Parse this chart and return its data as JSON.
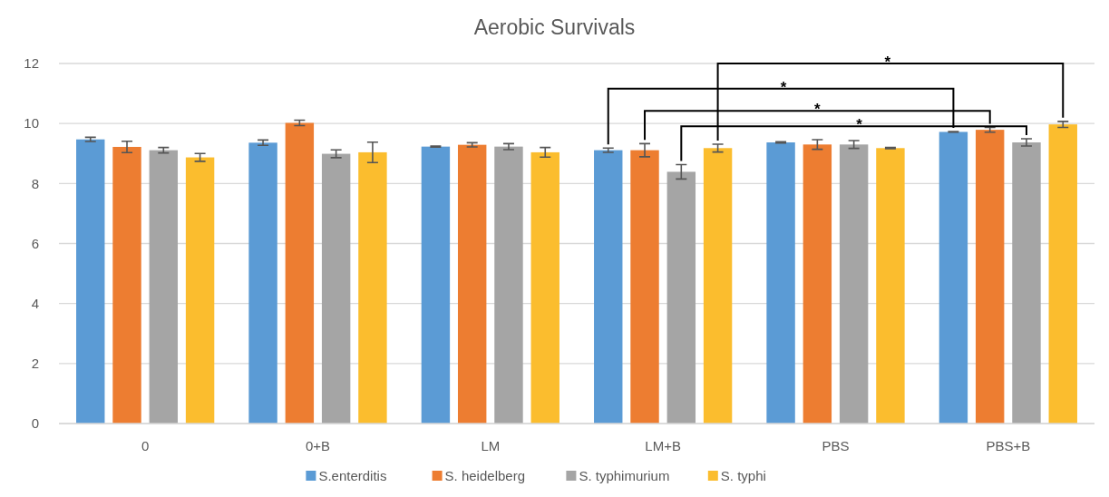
{
  "chart_data": {
    "type": "bar",
    "title": "Aerobic Survivals",
    "categories": [
      "0",
      "0+B",
      "LM",
      "LM+B",
      "PBS",
      "PBS+B"
    ],
    "series": [
      {
        "name": "S.enterditis",
        "color": "#5b9bd5",
        "values": [
          9.47,
          9.36,
          9.23,
          9.11,
          9.37,
          9.72
        ],
        "errors": [
          0.07,
          0.09,
          0.02,
          0.07,
          0.02,
          0.01
        ]
      },
      {
        "name": "S. heidelberg",
        "color": "#ed7d31",
        "values": [
          9.22,
          10.02,
          9.29,
          9.11,
          9.3,
          9.79
        ],
        "errors": [
          0.19,
          0.09,
          0.07,
          0.22,
          0.16,
          0.08
        ]
      },
      {
        "name": "S. typhimurium",
        "color": "#a5a5a5",
        "values": [
          9.11,
          8.99,
          9.23,
          8.39,
          9.3,
          9.37
        ],
        "errors": [
          0.09,
          0.13,
          0.1,
          0.24,
          0.13,
          0.12
        ]
      },
      {
        "name": "S. typhi",
        "color": "#fbbd2e",
        "values": [
          8.87,
          9.04,
          9.04,
          9.18,
          9.18,
          9.97
        ],
        "errors": [
          0.13,
          0.34,
          0.16,
          0.13,
          0.02,
          0.1
        ]
      }
    ],
    "ylim": [
      0,
      12
    ],
    "yticks": [
      0,
      2,
      4,
      6,
      8,
      10,
      12
    ],
    "grid": "y",
    "legend": "bottom",
    "annotations": [
      "*",
      "*",
      "*",
      "*"
    ]
  }
}
